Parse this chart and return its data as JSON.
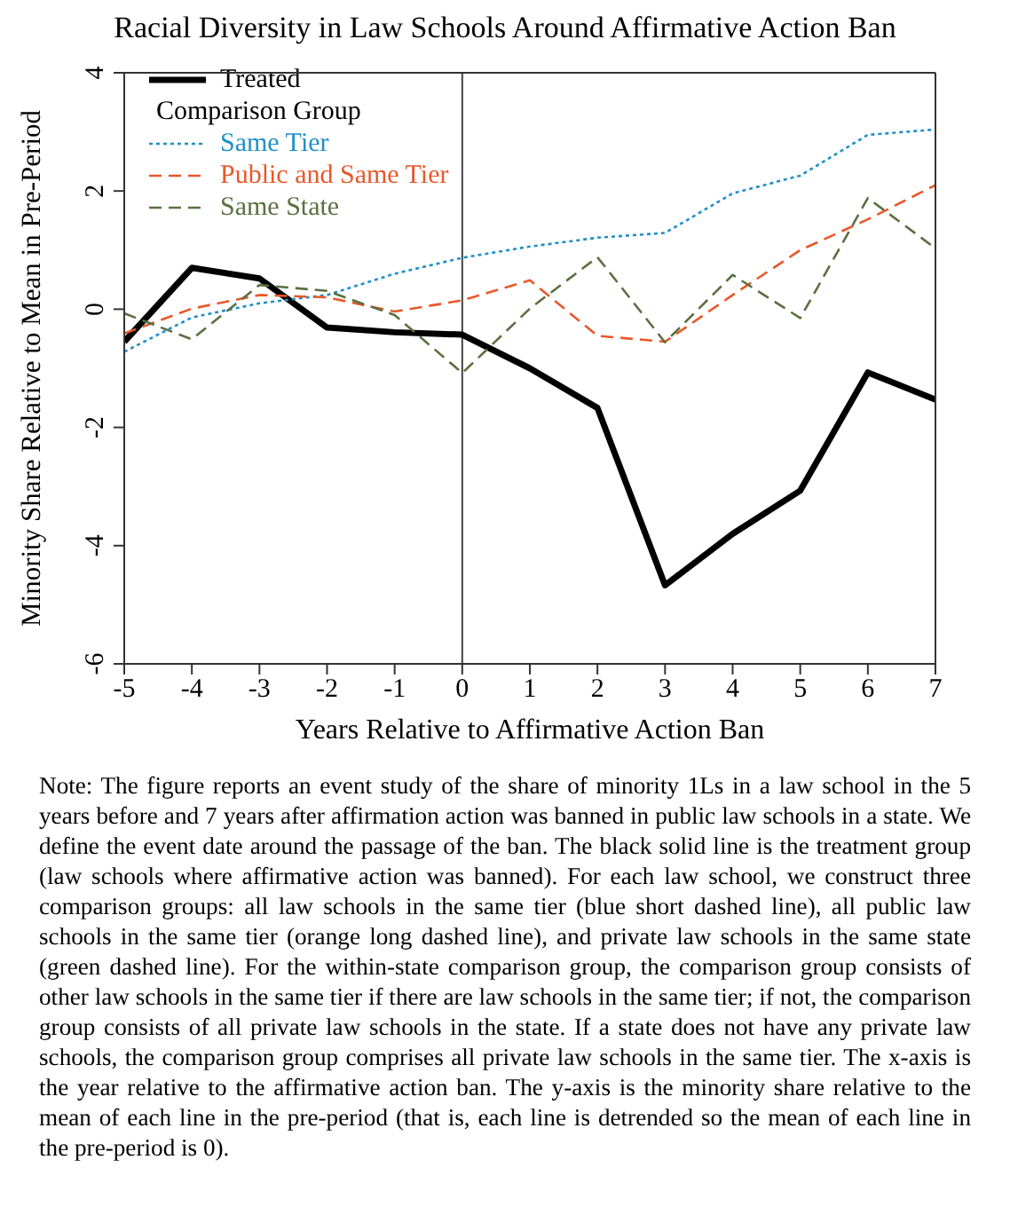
{
  "chart_data": {
    "type": "line",
    "title": "Racial Diversity in Law Schools Around Affirmative Action Ban",
    "xlabel": "Years Relative to Affirmative Action Ban",
    "ylabel": "Minority Share Relative to Mean in Pre-Period",
    "legend_title": "Comparison Group",
    "x": [
      -5,
      -4,
      -3,
      -2,
      -1,
      0,
      1,
      2,
      3,
      4,
      5,
      6,
      7
    ],
    "series": [
      {
        "name": "Treated",
        "color": "#000000",
        "line_style": "solid",
        "values": [
          -0.55,
          0.7,
          0.52,
          -0.31,
          -0.39,
          -0.43,
          -1.0,
          -1.67,
          -4.67,
          -3.8,
          -3.07,
          -1.07,
          -1.53
        ]
      },
      {
        "name": "Same Tier",
        "color": "#1f8fc8",
        "line_style": "dotted",
        "values": [
          -0.72,
          -0.14,
          0.1,
          0.24,
          0.6,
          0.87,
          1.06,
          1.21,
          1.29,
          1.96,
          2.26,
          2.95,
          3.04
        ]
      },
      {
        "name": "Public and Same Tier",
        "color": "#e8582a",
        "line_style": "dashed",
        "values": [
          -0.41,
          0.01,
          0.24,
          0.2,
          -0.04,
          0.15,
          0.49,
          -0.45,
          -0.55,
          0.24,
          1.0,
          1.52,
          2.1
        ]
      },
      {
        "name": "Same State",
        "color": "#5a7040",
        "line_style": "dashed",
        "values": [
          -0.07,
          -0.51,
          0.41,
          0.31,
          -0.1,
          -1.08,
          0.01,
          0.88,
          -0.56,
          0.58,
          -0.15,
          1.88,
          1.03
        ]
      }
    ],
    "xlim": [
      -5,
      7
    ],
    "xticks": [
      -5,
      -4,
      -3,
      -2,
      -1,
      0,
      1,
      2,
      3,
      4,
      5,
      6,
      7
    ],
    "ylim": [
      -6,
      4
    ],
    "yticks": [
      -6,
      -4,
      -2,
      0,
      2,
      4
    ],
    "ref_lines": [
      {
        "axis": "x",
        "value": 0,
        "color": "#444444"
      }
    ],
    "grid": false,
    "legend": "top left",
    "marker": "none",
    "annotations": [
      "Note: The figure reports an event study of the share of minority 1Ls in a law school in the 5 years before and 7 years after affirmation action was banned in public law schools in a state. We define the event date around the passage of the ban. The black solid line is the treatment group (law schools where affirmative action was banned). For each law school, we construct three comparison groups: all law schools in the same tier (blue short dashed line), all public law schools in the same tier (orange long dashed line), and private law schools in the same state (green dashed line). For the within-state comparison group, the comparison group consists of other law schools in the same tier if there are law schools in the same tier; if not, the comparison group consists of all private law schools in the state. If a state does not have any private law schools, the comparison group comprises all private law schools in the same tier. The x-axis is the year relative to the affirmative action ban. The y-axis is the minority share relative to the mean of each line in the pre-period (that is, each line is detrended so the mean of each line in the pre-period is 0)."
    ]
  }
}
